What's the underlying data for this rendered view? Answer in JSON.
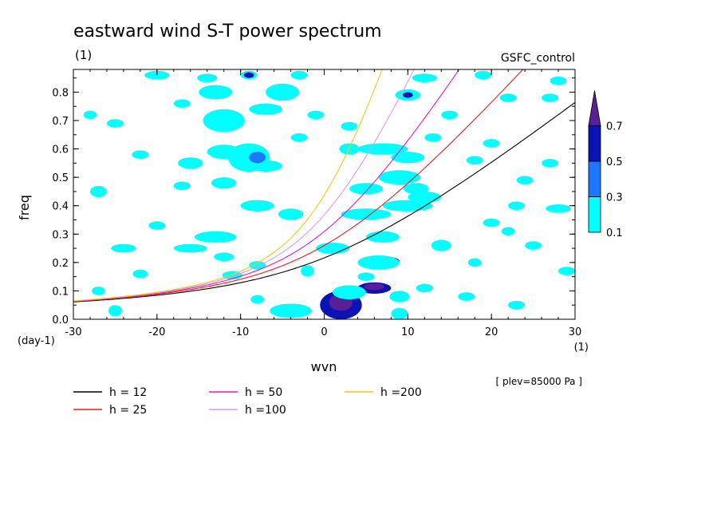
{
  "chart_data": {
    "type": "heatmap",
    "title": "eastward wind S-T power spectrum",
    "units_label": "(1)",
    "run_label": "GSFC_control",
    "xlabel": "wvn",
    "ylabel": "freq",
    "x_unit": "(1)",
    "y_unit": "(day-1)",
    "level_note": "[ plev=85000 Pa ]",
    "xlim": [
      -30,
      30
    ],
    "ylim": [
      0,
      0.88
    ],
    "x_ticks": [
      {
        "v": -30,
        "label": "-30"
      },
      {
        "v": -20,
        "label": "-20"
      },
      {
        "v": -10,
        "label": "-10"
      },
      {
        "v": 0,
        "label": "0"
      },
      {
        "v": 10,
        "label": "10"
      },
      {
        "v": 20,
        "label": "20"
      },
      {
        "v": 30,
        "label": "30"
      }
    ],
    "y_ticks": [
      {
        "v": 0.0,
        "label": "0.0"
      },
      {
        "v": 0.1,
        "label": "0.1"
      },
      {
        "v": 0.2,
        "label": "0.2"
      },
      {
        "v": 0.3,
        "label": "0.3"
      },
      {
        "v": 0.4,
        "label": "0.4"
      },
      {
        "v": 0.5,
        "label": "0.5"
      },
      {
        "v": 0.6,
        "label": "0.6"
      },
      {
        "v": 0.7,
        "label": "0.7"
      },
      {
        "v": 0.8,
        "label": "0.8"
      }
    ],
    "colorbar": {
      "levels": [
        "0.1",
        "0.3",
        "0.5",
        "0.7"
      ],
      "colors": [
        "#00ffff",
        "#1e78ff",
        "#0a14b4",
        "#5a1e96"
      ]
    },
    "dispersion_curves": [
      {
        "label": "h = 12",
        "h": 12,
        "color": "#000000"
      },
      {
        "label": "h = 25",
        "h": 25,
        "color": "#e61e1e"
      },
      {
        "label": "h = 50",
        "h": 50,
        "color": "#dc1ebe"
      },
      {
        "label": "h =100",
        "h": 100,
        "color": "#d2a0e6"
      },
      {
        "label": "h =200",
        "h": 200,
        "color": "#f0c81e"
      }
    ],
    "patches": [
      {
        "x": 2,
        "y": 0.05,
        "rx": 2.5,
        "ry": 0.05,
        "level": 2
      },
      {
        "x": 2,
        "y": 0.06,
        "rx": 1.4,
        "ry": 0.03,
        "level": 3
      },
      {
        "x": 6,
        "y": 0.11,
        "rx": 2.0,
        "ry": 0.02,
        "level": 2
      },
      {
        "x": 6,
        "y": 0.115,
        "rx": 1.2,
        "ry": 0.012,
        "level": 3
      },
      {
        "x": 7.5,
        "y": 0.205,
        "rx": 1.5,
        "ry": 0.015,
        "level": 2
      },
      {
        "x": -4,
        "y": 0.03,
        "rx": 2.5,
        "ry": 0.025,
        "level": 0
      },
      {
        "x": -25,
        "y": 0.03,
        "rx": 0.8,
        "ry": 0.02,
        "level": 0
      },
      {
        "x": 9,
        "y": 0.02,
        "rx": 1.0,
        "ry": 0.02,
        "level": 0
      },
      {
        "x": 3,
        "y": 0.095,
        "rx": 2.0,
        "ry": 0.025,
        "level": 0
      },
      {
        "x": 9,
        "y": 0.08,
        "rx": 1.2,
        "ry": 0.02,
        "level": 0
      },
      {
        "x": -22,
        "y": 0.16,
        "rx": 0.9,
        "ry": 0.015,
        "level": 0
      },
      {
        "x": -2,
        "y": 0.17,
        "rx": 0.8,
        "ry": 0.02,
        "level": 0
      },
      {
        "x": 6.5,
        "y": 0.2,
        "rx": 2.5,
        "ry": 0.025,
        "level": 0
      },
      {
        "x": -11,
        "y": 0.155,
        "rx": 1.2,
        "ry": 0.015,
        "level": 0
      },
      {
        "x": 5,
        "y": 0.15,
        "rx": 1.0,
        "ry": 0.015,
        "level": 0
      },
      {
        "x": -24,
        "y": 0.25,
        "rx": 1.5,
        "ry": 0.015,
        "level": 0
      },
      {
        "x": -16,
        "y": 0.25,
        "rx": 2.0,
        "ry": 0.015,
        "level": 0
      },
      {
        "x": -13,
        "y": 0.29,
        "rx": 2.5,
        "ry": 0.02,
        "level": 0
      },
      {
        "x": -12,
        "y": 0.22,
        "rx": 1.2,
        "ry": 0.015,
        "level": 0
      },
      {
        "x": -8,
        "y": 0.19,
        "rx": 1.0,
        "ry": 0.015,
        "level": 0
      },
      {
        "x": 1,
        "y": 0.25,
        "rx": 2.0,
        "ry": 0.02,
        "level": 0
      },
      {
        "x": 7,
        "y": 0.29,
        "rx": 2.0,
        "ry": 0.02,
        "level": 0
      },
      {
        "x": 14,
        "y": 0.26,
        "rx": 1.2,
        "ry": 0.02,
        "level": 0
      },
      {
        "x": 25,
        "y": 0.26,
        "rx": 1.0,
        "ry": 0.015,
        "level": 0
      },
      {
        "x": 29,
        "y": 0.17,
        "rx": 1.0,
        "ry": 0.015,
        "level": 0
      },
      {
        "x": 18,
        "y": 0.2,
        "rx": 0.8,
        "ry": 0.015,
        "level": 0
      },
      {
        "x": -20,
        "y": 0.33,
        "rx": 1.0,
        "ry": 0.015,
        "level": 0
      },
      {
        "x": -4,
        "y": 0.37,
        "rx": 1.5,
        "ry": 0.02,
        "level": 0
      },
      {
        "x": -8,
        "y": 0.4,
        "rx": 2.0,
        "ry": 0.02,
        "level": 0
      },
      {
        "x": 5,
        "y": 0.37,
        "rx": 3.0,
        "ry": 0.02,
        "level": 0
      },
      {
        "x": 10,
        "y": 0.4,
        "rx": 3.0,
        "ry": 0.02,
        "level": 0
      },
      {
        "x": 12,
        "y": 0.43,
        "rx": 2.0,
        "ry": 0.02,
        "level": 0
      },
      {
        "x": 20,
        "y": 0.34,
        "rx": 1.0,
        "ry": 0.015,
        "level": 0
      },
      {
        "x": 23,
        "y": 0.4,
        "rx": 1.0,
        "ry": 0.015,
        "level": 0
      },
      {
        "x": 28,
        "y": 0.39,
        "rx": 1.5,
        "ry": 0.015,
        "level": 0
      },
      {
        "x": 22,
        "y": 0.31,
        "rx": 0.8,
        "ry": 0.015,
        "level": 0
      },
      {
        "x": -27,
        "y": 0.45,
        "rx": 1.0,
        "ry": 0.02,
        "level": 0
      },
      {
        "x": -17,
        "y": 0.47,
        "rx": 1.0,
        "ry": 0.015,
        "level": 0
      },
      {
        "x": -12,
        "y": 0.48,
        "rx": 1.5,
        "ry": 0.02,
        "level": 0
      },
      {
        "x": 5,
        "y": 0.46,
        "rx": 2.0,
        "ry": 0.02,
        "level": 0
      },
      {
        "x": 9,
        "y": 0.5,
        "rx": 2.5,
        "ry": 0.025,
        "level": 0
      },
      {
        "x": 11,
        "y": 0.46,
        "rx": 1.5,
        "ry": 0.02,
        "level": 0
      },
      {
        "x": 3,
        "y": 0.6,
        "rx": 1.2,
        "ry": 0.02,
        "level": 0
      },
      {
        "x": 24,
        "y": 0.49,
        "rx": 1.0,
        "ry": 0.015,
        "level": 0
      },
      {
        "x": -7,
        "y": 0.54,
        "rx": 2.0,
        "ry": 0.02,
        "level": 0
      },
      {
        "x": -12,
        "y": 0.59,
        "rx": 2.0,
        "ry": 0.025,
        "level": 0
      },
      {
        "x": -9,
        "y": 0.57,
        "rx": 2.5,
        "ry": 0.05,
        "level": 0
      },
      {
        "x": -8,
        "y": 0.57,
        "rx": 1.0,
        "ry": 0.02,
        "level": 1
      },
      {
        "x": -16,
        "y": 0.55,
        "rx": 1.5,
        "ry": 0.02,
        "level": 0
      },
      {
        "x": -22,
        "y": 0.58,
        "rx": 1.0,
        "ry": 0.015,
        "level": 0
      },
      {
        "x": 7,
        "y": 0.6,
        "rx": 3.0,
        "ry": 0.02,
        "level": 0
      },
      {
        "x": 10,
        "y": 0.57,
        "rx": 2.0,
        "ry": 0.02,
        "level": 0
      },
      {
        "x": 18,
        "y": 0.56,
        "rx": 1.0,
        "ry": 0.015,
        "level": 0
      },
      {
        "x": 20,
        "y": 0.62,
        "rx": 1.0,
        "ry": 0.015,
        "level": 0
      },
      {
        "x": 27,
        "y": 0.55,
        "rx": 1.0,
        "ry": 0.015,
        "level": 0
      },
      {
        "x": -12,
        "y": 0.7,
        "rx": 2.5,
        "ry": 0.04,
        "level": 0
      },
      {
        "x": -7,
        "y": 0.74,
        "rx": 2.0,
        "ry": 0.02,
        "level": 0
      },
      {
        "x": -5,
        "y": 0.8,
        "rx": 2.0,
        "ry": 0.03,
        "level": 0
      },
      {
        "x": -13,
        "y": 0.8,
        "rx": 2.0,
        "ry": 0.025,
        "level": 0
      },
      {
        "x": -17,
        "y": 0.76,
        "rx": 1.0,
        "ry": 0.015,
        "level": 0
      },
      {
        "x": -25,
        "y": 0.69,
        "rx": 1.0,
        "ry": 0.015,
        "level": 0
      },
      {
        "x": -28,
        "y": 0.72,
        "rx": 0.8,
        "ry": 0.015,
        "level": 0
      },
      {
        "x": -20,
        "y": 0.86,
        "rx": 1.5,
        "ry": 0.015,
        "level": 0
      },
      {
        "x": -14,
        "y": 0.85,
        "rx": 1.2,
        "ry": 0.015,
        "level": 0
      },
      {
        "x": -9,
        "y": 0.86,
        "rx": 1.0,
        "ry": 0.015,
        "level": 0
      },
      {
        "x": -9,
        "y": 0.86,
        "rx": 0.6,
        "ry": 0.01,
        "level": 2
      },
      {
        "x": 3,
        "y": 0.68,
        "rx": 1.0,
        "ry": 0.015,
        "level": 0
      },
      {
        "x": 10,
        "y": 0.79,
        "rx": 1.5,
        "ry": 0.02,
        "level": 0
      },
      {
        "x": 10,
        "y": 0.79,
        "rx": 0.6,
        "ry": 0.01,
        "level": 2
      },
      {
        "x": 12,
        "y": 0.85,
        "rx": 1.5,
        "ry": 0.015,
        "level": 0
      },
      {
        "x": 15,
        "y": 0.72,
        "rx": 1.0,
        "ry": 0.015,
        "level": 0
      },
      {
        "x": 19,
        "y": 0.86,
        "rx": 1.0,
        "ry": 0.015,
        "level": 0
      },
      {
        "x": 22,
        "y": 0.78,
        "rx": 1.0,
        "ry": 0.015,
        "level": 0
      },
      {
        "x": 27,
        "y": 0.78,
        "rx": 1.0,
        "ry": 0.015,
        "level": 0
      },
      {
        "x": 28,
        "y": 0.84,
        "rx": 1.0,
        "ry": 0.015,
        "level": 0
      },
      {
        "x": -3,
        "y": 0.64,
        "rx": 1.0,
        "ry": 0.015,
        "level": 0
      },
      {
        "x": -1,
        "y": 0.72,
        "rx": 1.0,
        "ry": 0.015,
        "level": 0
      },
      {
        "x": -3,
        "y": 0.86,
        "rx": 1.0,
        "ry": 0.015,
        "level": 0
      },
      {
        "x": 13,
        "y": 0.64,
        "rx": 1.0,
        "ry": 0.015,
        "level": 0
      },
      {
        "x": -27,
        "y": 0.1,
        "rx": 0.8,
        "ry": 0.015,
        "level": 0
      },
      {
        "x": 12,
        "y": 0.11,
        "rx": 1.0,
        "ry": 0.015,
        "level": 0
      },
      {
        "x": 17,
        "y": 0.08,
        "rx": 1.0,
        "ry": 0.015,
        "level": 0
      },
      {
        "x": 23,
        "y": 0.05,
        "rx": 1.0,
        "ry": 0.015,
        "level": 0
      },
      {
        "x": -8,
        "y": 0.07,
        "rx": 0.8,
        "ry": 0.015,
        "level": 0
      }
    ]
  }
}
